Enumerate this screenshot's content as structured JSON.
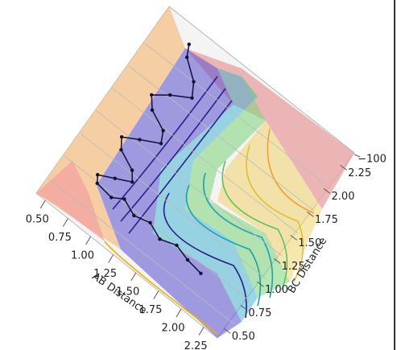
{
  "chart_data": {
    "type": "trajectory3d",
    "xlabel": "AB Distance",
    "ylabel": "BC Distance",
    "xlim": [
      0.4,
      2.4
    ],
    "ylim": [
      0.4,
      2.4
    ],
    "xticks": [
      {
        "value": 0.5,
        "label": "0.50"
      },
      {
        "value": 0.75,
        "label": "0.75"
      },
      {
        "value": 1.0,
        "label": "1.00"
      },
      {
        "value": 1.25,
        "label": "1.25"
      },
      {
        "value": 1.5,
        "label": "1.50"
      },
      {
        "value": 1.75,
        "label": "1.75"
      },
      {
        "value": 2.0,
        "label": "2.00"
      },
      {
        "value": 2.25,
        "label": "2.25"
      }
    ],
    "yticks": [
      {
        "value": 0.5,
        "label": "0.50"
      },
      {
        "value": 0.75,
        "label": "0.75"
      },
      {
        "value": 1.0,
        "label": "1.00"
      },
      {
        "value": 1.25,
        "label": "1.25"
      },
      {
        "value": 1.5,
        "label": "1.50"
      },
      {
        "value": 1.75,
        "label": "1.75"
      },
      {
        "value": 2.0,
        "label": "2.00"
      },
      {
        "value": 2.25,
        "label": "2.25"
      }
    ],
    "zticks": [
      {
        "value": -100,
        "label": "−100"
      }
    ],
    "series": [
      {
        "color": "#111133",
        "x": [
          0.73,
          0.78,
          0.95,
          1.02,
          0.85,
          0.72,
          0.8,
          0.98,
          1.03,
          0.86,
          0.72,
          0.78,
          0.96,
          1.02,
          0.88,
          0.74,
          0.78,
          0.95,
          1.05,
          1.2,
          1.35,
          1.5,
          1.65,
          1.8,
          1.96
        ],
        "y": [
          2.25,
          2.15,
          2.02,
          1.9,
          1.8,
          1.7,
          1.6,
          1.52,
          1.42,
          1.33,
          1.25,
          1.16,
          1.08,
          1.0,
          0.93,
          0.86,
          0.8,
          0.78,
          0.84,
          0.78,
          0.82,
          0.76,
          0.81,
          0.77,
          0.75
        ]
      }
    ]
  }
}
